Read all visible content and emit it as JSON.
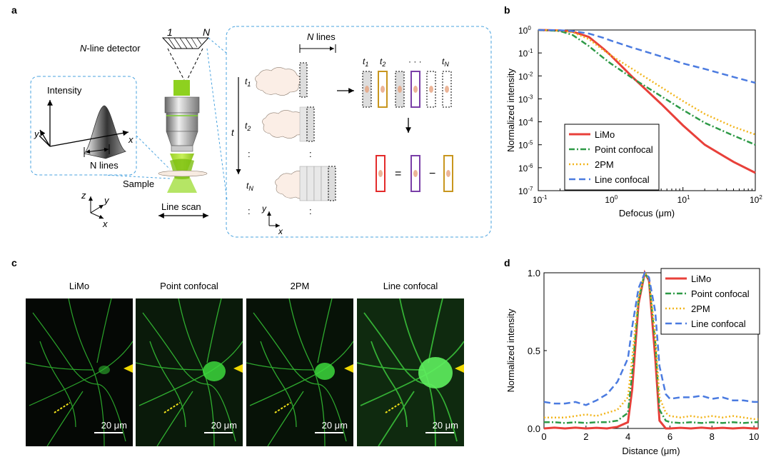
{
  "panels": {
    "a": "a",
    "b": "b",
    "c": "c",
    "d": "d"
  },
  "panel_a": {
    "detector_label": "N-line detector",
    "detector_label_italic": "N",
    "detector_label_rest": "-line detector",
    "det_one": "1",
    "det_n": "N",
    "intensity": "Intensity",
    "axis_y": "y",
    "axis_x": "x",
    "n_lines_inset": "N lines",
    "sample": "Sample",
    "line_scan": "Line scan",
    "coord_z": "z",
    "coord_y": "y",
    "coord_x": "x",
    "n_lines_top": "N lines",
    "time_axis": "t",
    "t1": "t1",
    "t2": "t2",
    "tN": "tN",
    "frames": [
      "t1",
      "t2",
      "· · ·",
      "tN"
    ],
    "equals": "=",
    "minus": "−",
    "dots": ":"
  },
  "panel_c": {
    "titles": [
      "LiMo",
      "Point confocal",
      "2PM",
      "Line confocal"
    ],
    "scale_label": "20 μm"
  },
  "chart_data": [
    {
      "type": "line",
      "xlabel": "Defocus (μm)",
      "ylabel": "Normalized intensity",
      "xscale": "log",
      "yscale": "log",
      "xlim": [
        0.1,
        100
      ],
      "ylim": [
        1e-07,
        1
      ],
      "xticks": [
        "10-1",
        "100",
        "101",
        "102"
      ],
      "yticks": [
        "10-7",
        "10-6",
        "10-5",
        "10-4",
        "10-3",
        "10-2",
        "10-1",
        "100"
      ],
      "legend_position": "bottom-left",
      "series": [
        {
          "name": "LiMo",
          "color": "#e8403a",
          "style": "solid",
          "x": [
            0.1,
            0.2,
            0.3,
            0.5,
            0.8,
            1,
            2,
            5,
            10,
            20,
            50,
            100
          ],
          "y": [
            1,
            0.95,
            0.85,
            0.5,
            0.15,
            0.08,
            0.009,
            0.0006,
            7e-05,
            1e-05,
            1.8e-06,
            6e-07
          ]
        },
        {
          "name": "Point confocal",
          "color": "#2e9a47",
          "style": "dashdot",
          "x": [
            0.1,
            0.2,
            0.3,
            0.5,
            0.8,
            1,
            2,
            5,
            10,
            20,
            50,
            100
          ],
          "y": [
            1,
            0.9,
            0.6,
            0.2,
            0.06,
            0.035,
            0.008,
            0.0013,
            0.00033,
            9e-05,
            2.5e-05,
            1e-05
          ]
        },
        {
          "name": "2PM",
          "color": "#f2b51c",
          "style": "dotted",
          "x": [
            0.1,
            0.2,
            0.3,
            0.5,
            0.8,
            1,
            2,
            5,
            10,
            20,
            50,
            100
          ],
          "y": [
            1,
            0.95,
            0.8,
            0.4,
            0.13,
            0.08,
            0.02,
            0.0032,
            0.0008,
            0.00022,
            6e-05,
            2.8e-05
          ]
        },
        {
          "name": "Line confocal",
          "color": "#4b7be0",
          "style": "dashed",
          "x": [
            0.1,
            0.2,
            0.3,
            0.5,
            0.8,
            1,
            2,
            5,
            10,
            20,
            50,
            100
          ],
          "y": [
            1,
            0.97,
            0.9,
            0.7,
            0.45,
            0.35,
            0.17,
            0.07,
            0.035,
            0.02,
            0.009,
            0.005
          ]
        }
      ]
    },
    {
      "type": "line",
      "xlabel": "Distance (μm)",
      "ylabel": "Normalized intensity",
      "xlim": [
        0,
        10.2
      ],
      "ylim": [
        0,
        1
      ],
      "xticks": [
        0,
        2,
        4,
        6,
        8,
        10
      ],
      "yticks": [
        "0.0",
        "0.5",
        "1.0"
      ],
      "legend_position": "top-right",
      "series": [
        {
          "name": "LiMo",
          "color": "#e8403a",
          "style": "solid",
          "x": [
            0,
            0.5,
            1,
            1.5,
            2,
            2.5,
            3,
            3.5,
            4,
            4.2,
            4.5,
            4.8,
            5.0,
            5.3,
            5.5,
            5.8,
            6,
            6.5,
            7,
            7.5,
            8,
            8.5,
            9,
            9.5,
            10,
            10.2
          ],
          "y": [
            0,
            0.005,
            0,
            0.005,
            0,
            0.004,
            0,
            0.01,
            0.04,
            0.25,
            0.8,
            1.0,
            0.95,
            0.45,
            0.05,
            0.0,
            0,
            0.004,
            0,
            0.005,
            0,
            0.004,
            0,
            0.004,
            0,
            0
          ]
        },
        {
          "name": "Point confocal",
          "color": "#2e9a47",
          "style": "dashdot",
          "x": [
            0,
            0.5,
            1,
            1.5,
            2,
            2.5,
            3,
            3.5,
            4,
            4.2,
            4.5,
            4.8,
            5.0,
            5.3,
            5.5,
            5.8,
            6,
            6.5,
            7,
            7.5,
            8,
            8.5,
            9,
            9.5,
            10,
            10.2
          ],
          "y": [
            0.04,
            0.04,
            0.035,
            0.04,
            0.035,
            0.04,
            0.04,
            0.05,
            0.1,
            0.35,
            0.82,
            1.0,
            0.95,
            0.55,
            0.12,
            0.05,
            0.04,
            0.035,
            0.04,
            0.035,
            0.04,
            0.035,
            0.04,
            0.035,
            0.04,
            0.04
          ]
        },
        {
          "name": "2PM",
          "color": "#f2b51c",
          "style": "dotted",
          "x": [
            0,
            0.5,
            1,
            1.5,
            2,
            2.5,
            3,
            3.5,
            4,
            4.2,
            4.5,
            4.8,
            5.0,
            5.3,
            5.5,
            5.8,
            6,
            6.5,
            7,
            7.5,
            8,
            8.5,
            9,
            9.5,
            10,
            10.2
          ],
          "y": [
            0.07,
            0.07,
            0.07,
            0.08,
            0.09,
            0.08,
            0.1,
            0.12,
            0.2,
            0.45,
            0.85,
            1.0,
            0.96,
            0.6,
            0.2,
            0.1,
            0.08,
            0.07,
            0.08,
            0.07,
            0.08,
            0.07,
            0.08,
            0.07,
            0.06,
            0.06
          ]
        },
        {
          "name": "Line confocal",
          "color": "#4b7be0",
          "style": "dashed",
          "x": [
            0,
            0.5,
            1,
            1.5,
            2,
            2.5,
            3,
            3.5,
            4,
            4.2,
            4.5,
            4.8,
            5.0,
            5.3,
            5.5,
            5.8,
            6,
            6.5,
            7,
            7.5,
            8,
            8.5,
            9,
            9.5,
            10,
            10.2
          ],
          "y": [
            0.17,
            0.16,
            0.16,
            0.17,
            0.15,
            0.18,
            0.22,
            0.3,
            0.45,
            0.65,
            0.9,
            1.0,
            0.97,
            0.75,
            0.4,
            0.22,
            0.19,
            0.2,
            0.2,
            0.21,
            0.19,
            0.2,
            0.18,
            0.18,
            0.17,
            0.17
          ]
        }
      ]
    }
  ]
}
